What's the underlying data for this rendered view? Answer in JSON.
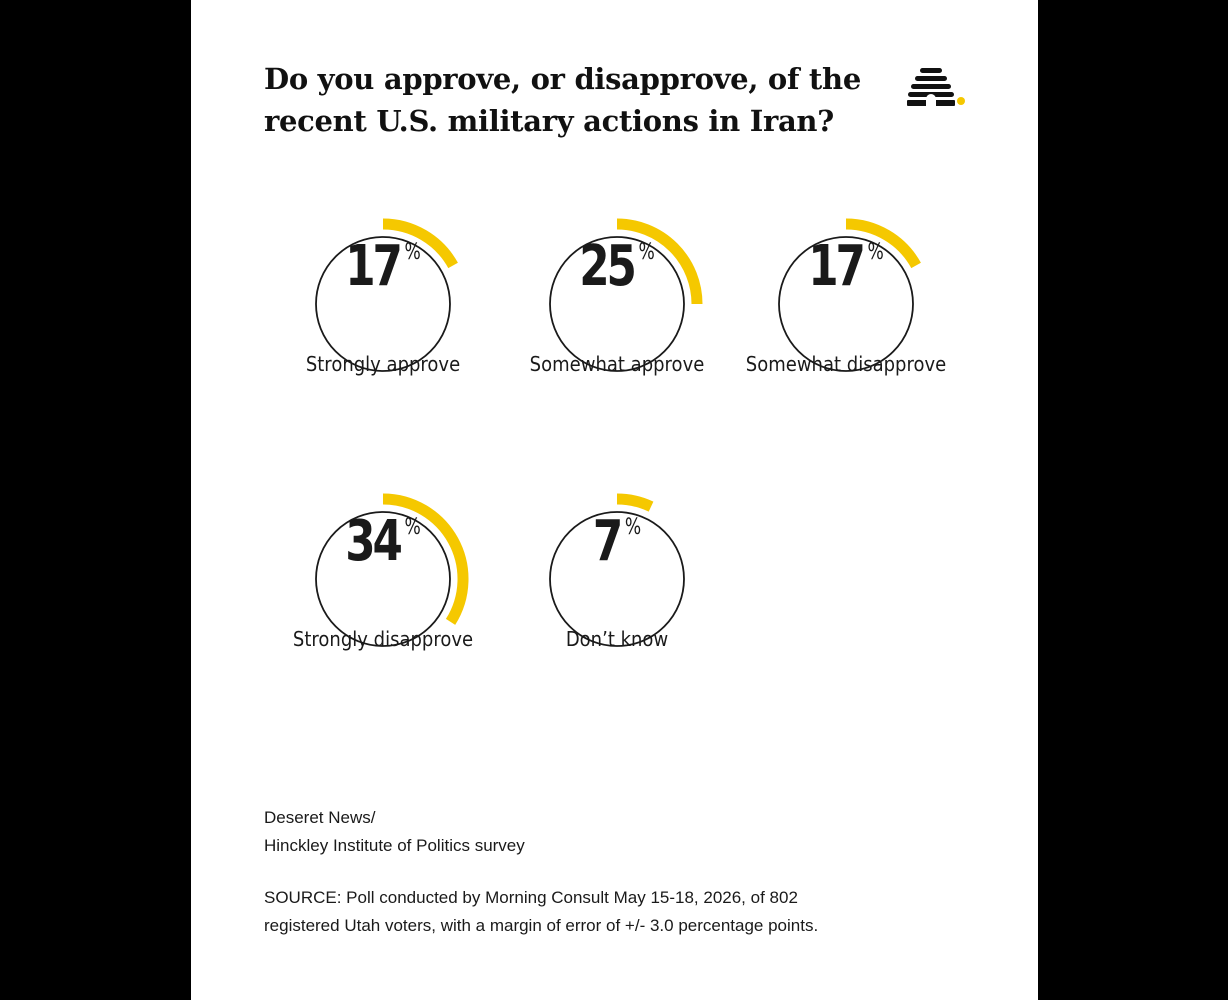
{
  "header": {
    "title": "Do you approve, or disapprove, of the recent U.S. military actions in Iran?"
  },
  "logo": {
    "icon": "beehive-icon",
    "dot_color": "#f5c800"
  },
  "colors": {
    "accent": "#f5c800",
    "ring": "#1a1a1a",
    "text": "#1a1a1a",
    "background": "#ffffff",
    "frame": "#000000"
  },
  "percent_sign": "%",
  "chart_data": {
    "type": "pie",
    "title": "Do you approve, or disapprove, of the recent U.S. military actions in Iran?",
    "unit": "%",
    "categories": [
      "Strongly approve",
      "Somewhat approve",
      "Somewhat disapprove",
      "Strongly disapprove",
      "Don’t know"
    ],
    "values": [
      17,
      25,
      17,
      34,
      7
    ],
    "items": [
      {
        "label": "Strongly approve",
        "value": 17
      },
      {
        "label": "Somewhat approve",
        "value": 25
      },
      {
        "label": "Somewhat disapprove",
        "value": 17
      },
      {
        "label": "Strongly disapprove",
        "value": 34
      },
      {
        "label": "Don’t know",
        "value": 7
      }
    ]
  },
  "footer": {
    "org_line1": "Deseret News/",
    "org_line2": "Hinckley Institute of Politics survey",
    "source_line1": "SOURCE: Poll conducted by Morning Consult May 15-18, 2026, of 802",
    "source_line2": "registered Utah voters, with a margin of error of +/- 3.0 percentage points."
  }
}
